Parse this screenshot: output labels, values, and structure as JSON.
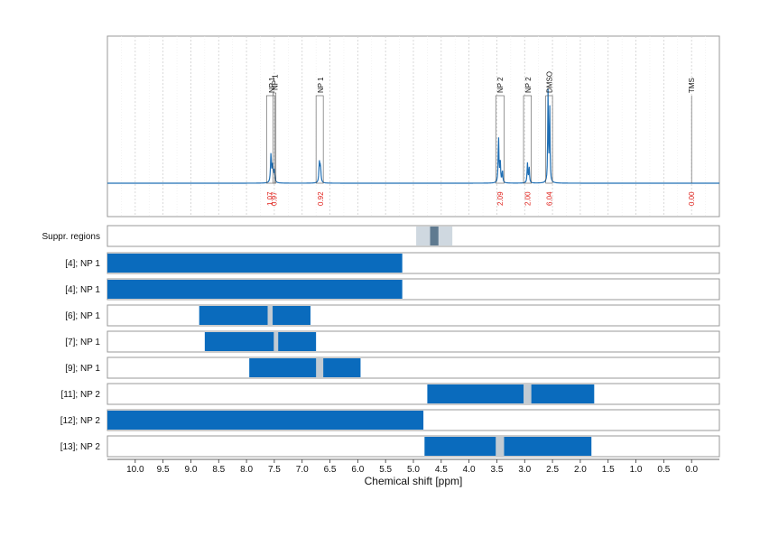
{
  "chart_data": {
    "type": "nmr-spectrum-with-region-tracks",
    "xlabel": "Chemical shift [ppm]",
    "xlim": [
      10.5,
      -0.5
    ],
    "x_reversed": true,
    "x_ticks": [
      10.0,
      9.5,
      9.0,
      8.5,
      8.0,
      7.5,
      7.0,
      6.5,
      6.0,
      5.5,
      5.0,
      4.5,
      4.0,
      3.5,
      3.0,
      2.5,
      2.0,
      1.5,
      1.0,
      0.5,
      0.0
    ],
    "x_tick_labels": [
      "10.0",
      "9.5",
      "9.0",
      "8.5",
      "8.0",
      "7.5",
      "7.0",
      "6.5",
      "6.0",
      "5.5",
      "5.0",
      "4.5",
      "4.0",
      "3.5",
      "3.0",
      "2.5",
      "2.0",
      "1.5",
      "1.0",
      "0.5",
      "0.0"
    ],
    "spectrum": {
      "line_color": "#1f6fb5",
      "peaks": [
        {
          "ppm": 7.56,
          "height": 0.32,
          "width": 0.01
        },
        {
          "ppm": 7.53,
          "height": 0.18,
          "width": 0.01
        },
        {
          "ppm": 7.5,
          "height": 0.14,
          "width": 0.01
        },
        {
          "ppm": 6.69,
          "height": 0.22,
          "width": 0.01
        },
        {
          "ppm": 6.67,
          "height": 0.17,
          "width": 0.01
        },
        {
          "ppm": 3.47,
          "height": 0.52,
          "width": 0.008
        },
        {
          "ppm": 3.44,
          "height": 0.26,
          "width": 0.008
        },
        {
          "ppm": 3.4,
          "height": 0.14,
          "width": 0.008
        },
        {
          "ppm": 2.95,
          "height": 0.22,
          "width": 0.008
        },
        {
          "ppm": 2.92,
          "height": 0.18,
          "width": 0.008
        },
        {
          "ppm": 2.58,
          "height": 1.0,
          "width": 0.007
        },
        {
          "ppm": 2.55,
          "height": 0.85,
          "width": 0.007
        }
      ],
      "peak_annotations": [
        {
          "label": "NP 1",
          "ppm": 7.55,
          "box_from": 7.64,
          "box_to": 7.49,
          "box_top": 0.97
        },
        {
          "label": "NP 1",
          "ppm": 7.49,
          "box_from": 7.52,
          "box_to": 7.47,
          "box_top": 1.0
        },
        {
          "label": "NP 1",
          "ppm": 6.67,
          "box_from": 6.75,
          "box_to": 6.62,
          "box_top": 0.97
        },
        {
          "label": "NP 2",
          "ppm": 3.44,
          "box_from": 3.52,
          "box_to": 3.37,
          "box_top": 0.97
        },
        {
          "label": "NP 2",
          "ppm": 2.94,
          "box_from": 3.02,
          "box_to": 2.88,
          "box_top": 0.97
        },
        {
          "label": "DMSO",
          "ppm": 2.56,
          "box_from": 2.62,
          "box_to": 2.5,
          "box_top": 0.97
        },
        {
          "label": "TMS",
          "ppm": 0.0,
          "box_from": 0.0,
          "box_to": 0.0,
          "box_top": 0.97
        }
      ],
      "integrals": [
        {
          "ppm": 7.58,
          "value": "1.07"
        },
        {
          "ppm": 7.51,
          "value": "0.97"
        },
        {
          "ppm": 6.67,
          "value": "0.92"
        },
        {
          "ppm": 3.44,
          "value": "2.09"
        },
        {
          "ppm": 2.95,
          "value": "2.00"
        },
        {
          "ppm": 2.56,
          "value": "6.04"
        },
        {
          "ppm": 0.0,
          "value": "0.00"
        }
      ]
    },
    "suppression": {
      "label": "Suppr. regions",
      "light_from": 4.95,
      "light_to": 4.3,
      "light_color": "#cfd8e0",
      "dark_from": 4.7,
      "dark_to": 4.55,
      "dark_color": "#5f7a90"
    },
    "tracks": [
      {
        "label": "[4]; NP 1",
        "from": 10.5,
        "to": 5.2,
        "color": "#0a6bbd"
      },
      {
        "label": "[4]; NP 1",
        "from": 10.5,
        "to": 5.2,
        "color": "#0a6bbd"
      },
      {
        "label": "[6]; NP 1",
        "from": 8.85,
        "to": 6.85,
        "color": "#0a6bbd",
        "gap_from": 7.62,
        "gap_to": 7.53
      },
      {
        "label": "[7]; NP 1",
        "from": 8.75,
        "to": 6.75,
        "color": "#0a6bbd",
        "gap_from": 7.51,
        "gap_to": 7.43
      },
      {
        "label": "[9]; NP 1",
        "from": 7.95,
        "to": 5.95,
        "color": "#0a6bbd",
        "gap_from": 6.75,
        "gap_to": 6.62
      },
      {
        "label": "[11]; NP 2",
        "from": 4.75,
        "to": 1.75,
        "color": "#0a6bbd",
        "gap_from": 3.02,
        "gap_to": 2.88
      },
      {
        "label": "[12]; NP 2",
        "from": 10.5,
        "to": 4.82,
        "color": "#0a6bbd"
      },
      {
        "label": "[13]; NP 2",
        "from": 4.8,
        "to": 1.8,
        "color": "#0a6bbd",
        "gap_from": 3.52,
        "gap_to": 3.37
      }
    ],
    "gap_color": "#c2cbd3",
    "grid": true
  }
}
